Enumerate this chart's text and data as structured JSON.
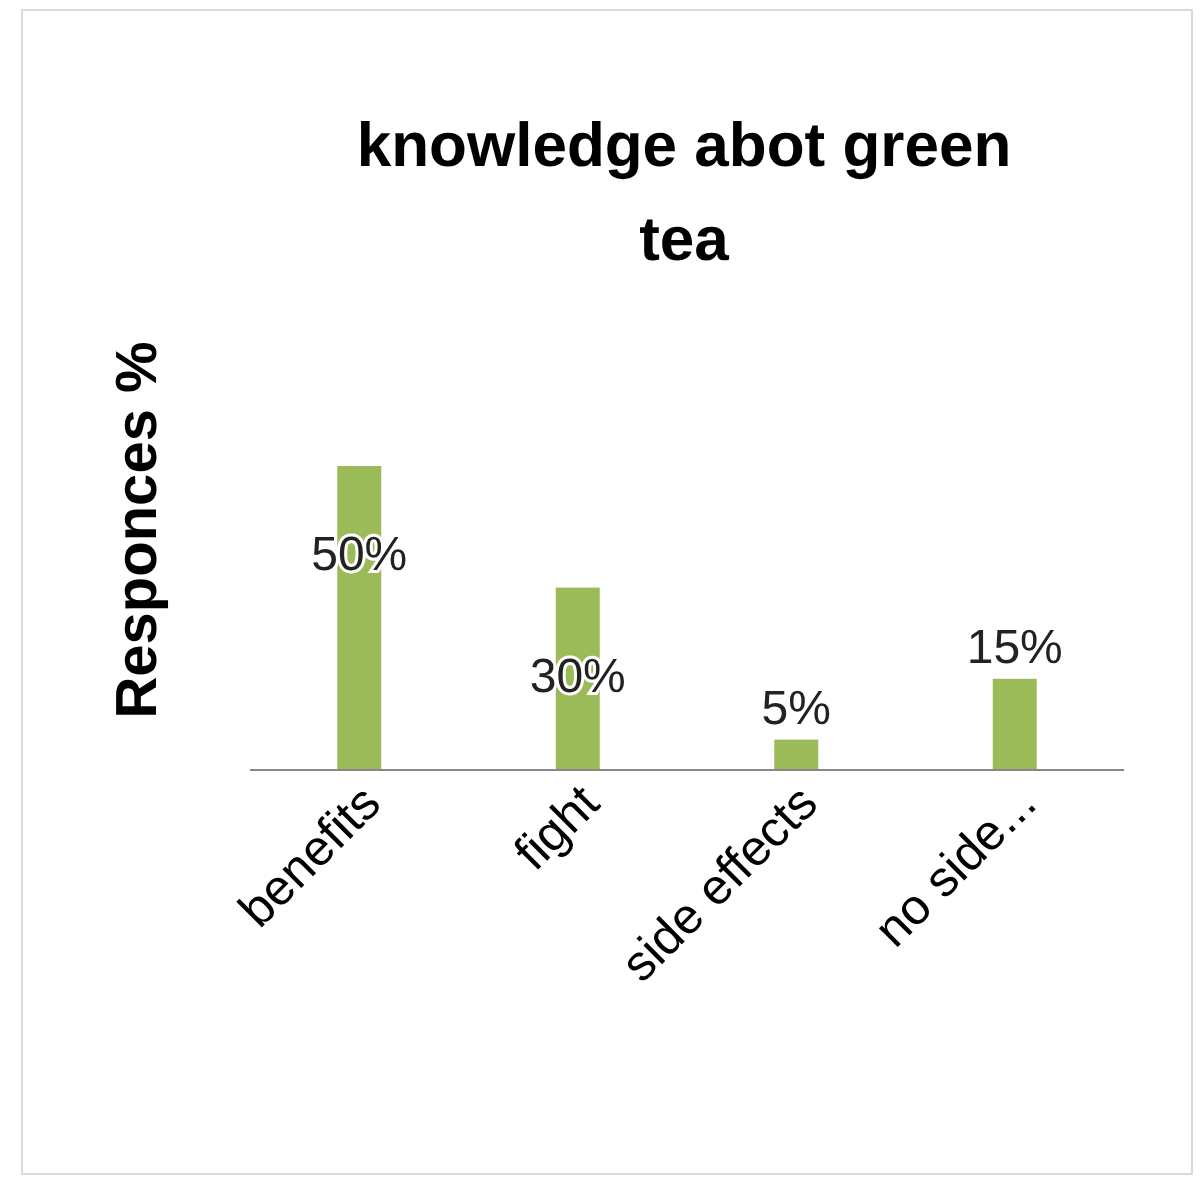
{
  "chart_data": {
    "type": "bar",
    "title": "knowledge abot green tea",
    "ylabel": "Responces %",
    "categories": [
      "benefits",
      "fight",
      "side effects",
      "no side..."
    ],
    "values": [
      50,
      30,
      5,
      15
    ],
    "color": "#9bbb59",
    "value_labels": [
      "50%",
      "30%",
      "5%",
      "15%"
    ]
  }
}
